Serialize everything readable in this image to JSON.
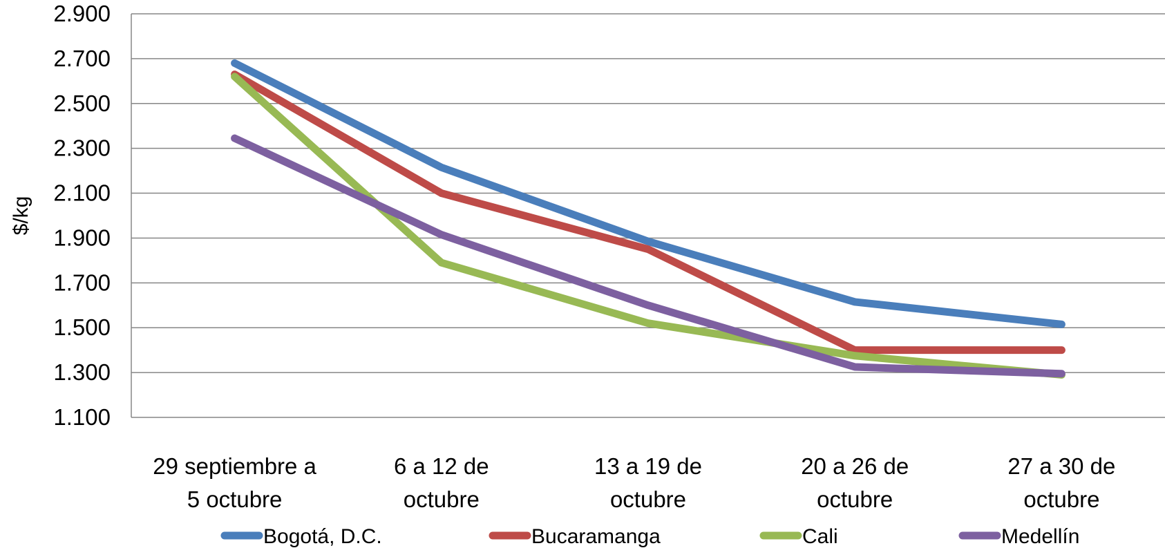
{
  "chart_data": {
    "type": "line",
    "ylabel": "$/kg",
    "xlabel": "",
    "ylim": [
      1100,
      2900
    ],
    "y_ticks": [
      1100,
      1300,
      1500,
      1700,
      1900,
      2100,
      2300,
      2500,
      2700,
      2900
    ],
    "y_tick_labels": [
      "1.100",
      "1.300",
      "1.500",
      "1.700",
      "1.900",
      "2.100",
      "2.300",
      "2.500",
      "2.700",
      "2.900"
    ],
    "categories": [
      [
        "29 septiembre a",
        "5 octubre"
      ],
      [
        "6 a 12 de",
        "octubre"
      ],
      [
        "13 a 19 de",
        "octubre"
      ],
      [
        "20 a 26 de",
        "octubre"
      ],
      [
        "27 a 30 de",
        "octubre"
      ]
    ],
    "grid": true,
    "legend_position": "bottom",
    "series": [
      {
        "name": "Bogotá, D.C.",
        "color": "#4a7ebb",
        "values": [
          2680,
          2215,
          1885,
          1615,
          1515
        ]
      },
      {
        "name": "Bucaramanga",
        "color": "#be4b48",
        "values": [
          2630,
          2100,
          1850,
          1400,
          1400
        ]
      },
      {
        "name": "Cali",
        "color": "#98b954",
        "values": [
          2620,
          1790,
          1520,
          1375,
          1290
        ]
      },
      {
        "name": "Medellín",
        "color": "#7d60a0",
        "values": [
          2345,
          1915,
          1600,
          1325,
          1295
        ]
      }
    ]
  }
}
